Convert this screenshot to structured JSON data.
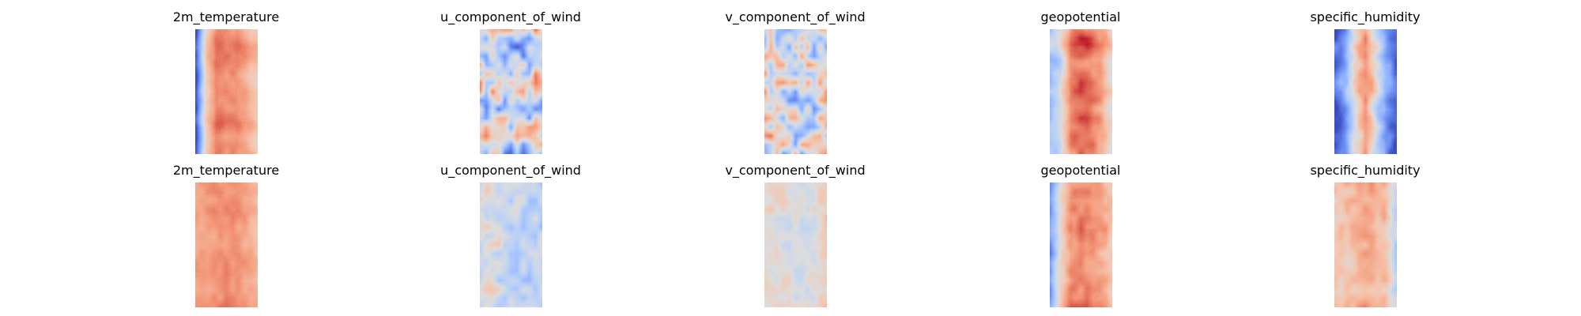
{
  "chart_data": [
    {
      "type": "heatmap",
      "title": "2m_temperature",
      "colormap": "coolwarm",
      "axes": "off",
      "pattern": {
        "cross": [
          0.0,
          0.58,
          0.82,
          0.78,
          0.78,
          0.7,
          0.6
        ],
        "along_noise": 0.05,
        "texture": 0.05,
        "seed": 11
      }
    },
    {
      "type": "heatmap",
      "title": "u_component_of_wind",
      "colormap": "coolwarm",
      "axes": "off",
      "pattern": {
        "cross": [
          0.45,
          0.48,
          0.5,
          0.4,
          0.38,
          0.45,
          0.5
        ],
        "along_noise": 0.18,
        "texture": 0.28,
        "seed": 23
      }
    },
    {
      "type": "heatmap",
      "title": "v_component_of_wind",
      "colormap": "coolwarm",
      "axes": "off",
      "pattern": {
        "cross": [
          0.55,
          0.5,
          0.46,
          0.44,
          0.46,
          0.5,
          0.55
        ],
        "along_noise": 0.08,
        "texture": 0.3,
        "seed": 37
      }
    },
    {
      "type": "heatmap",
      "title": "geopotential",
      "colormap": "coolwarm",
      "axes": "off",
      "pattern": {
        "cross": [
          0.35,
          0.45,
          0.8,
          0.88,
          0.85,
          0.75,
          0.55
        ],
        "along_noise": 0.12,
        "texture": 0.07,
        "seed": 41
      }
    },
    {
      "type": "heatmap",
      "title": "specific_humidity",
      "colormap": "coolwarm",
      "axes": "off",
      "pattern": {
        "cross": [
          0.05,
          0.22,
          0.55,
          0.75,
          0.5,
          0.2,
          0.05
        ],
        "along_noise": 0.06,
        "texture": 0.1,
        "seed": 53
      }
    },
    {
      "type": "heatmap",
      "title": "2m_temperature",
      "colormap": "coolwarm",
      "axes": "off",
      "pattern": {
        "cross": [
          0.72,
          0.74,
          0.76,
          0.78,
          0.76,
          0.72,
          0.66
        ],
        "along_noise": 0.04,
        "texture": 0.05,
        "seed": 61
      }
    },
    {
      "type": "heatmap",
      "title": "u_component_of_wind",
      "colormap": "coolwarm",
      "axes": "off",
      "pattern": {
        "cross": [
          0.46,
          0.52,
          0.45,
          0.42,
          0.4,
          0.4,
          0.4
        ],
        "along_noise": 0.04,
        "texture": 0.12,
        "seed": 71
      }
    },
    {
      "type": "heatmap",
      "title": "v_component_of_wind",
      "colormap": "coolwarm",
      "axes": "off",
      "pattern": {
        "cross": [
          0.52,
          0.52,
          0.5,
          0.48,
          0.48,
          0.5,
          0.6
        ],
        "along_noise": 0.03,
        "texture": 0.08,
        "seed": 83
      }
    },
    {
      "type": "heatmap",
      "title": "geopotential",
      "colormap": "coolwarm",
      "axes": "off",
      "pattern": {
        "cross": [
          0.2,
          0.55,
          0.78,
          0.8,
          0.78,
          0.72,
          0.62
        ],
        "along_noise": 0.05,
        "texture": 0.07,
        "seed": 97
      }
    },
    {
      "type": "heatmap",
      "title": "specific_humidity",
      "colormap": "coolwarm",
      "axes": "off",
      "pattern": {
        "cross": [
          0.6,
          0.62,
          0.66,
          0.72,
          0.68,
          0.62,
          0.4
        ],
        "along_noise": 0.05,
        "texture": 0.08,
        "seed": 101
      }
    }
  ]
}
